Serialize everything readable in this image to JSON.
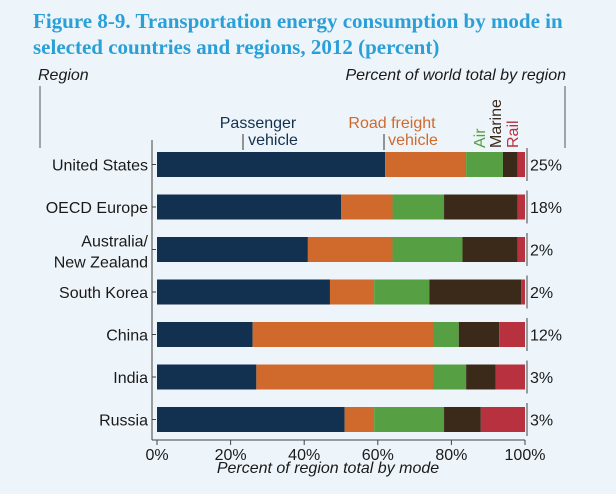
{
  "figure_title": "Figure 8-9. Transportation energy consumption by mode in selected countries and regions, 2012 (percent)",
  "colors": {
    "passenger": "#12304f",
    "road_freight": "#cf6a2c",
    "air": "#56a043",
    "marine": "#3b2a1a",
    "rail": "#b8313f",
    "title": "#2a9fd8",
    "background": "#eef5fa"
  },
  "chart_data": {
    "type": "bar",
    "orientation": "horizontal",
    "stacked": true,
    "categories": [
      "United States",
      "OECD Europe",
      "Australia/ New Zealand",
      "South Korea",
      "China",
      "India",
      "Russia"
    ],
    "series": [
      {
        "name": "Passenger vehicle",
        "values": [
          62,
          50,
          41,
          47,
          26,
          27,
          51
        ]
      },
      {
        "name": "Road freight vehicle",
        "values": [
          22,
          14,
          23,
          12,
          49,
          48,
          8
        ]
      },
      {
        "name": "Air",
        "values": [
          10,
          14,
          19,
          15,
          7,
          9,
          19
        ]
      },
      {
        "name": "Marine",
        "values": [
          4,
          20,
          15,
          25,
          11,
          8,
          10
        ]
      },
      {
        "name": "Rail",
        "values": [
          2,
          2,
          2,
          1,
          7,
          8,
          12
        ]
      }
    ],
    "right_values": [
      "25%",
      "18%",
      "2%",
      "2%",
      "12%",
      "3%",
      "3%"
    ],
    "xlim": [
      0,
      100
    ],
    "x_ticks": [
      "0%",
      "20%",
      "40%",
      "60%",
      "80%",
      "100%"
    ],
    "xlabel": "Percent of region total by mode",
    "left_header": "Region",
    "right_header": "Percent of world total by region",
    "series_labels": {
      "passenger": "Passenger vehicle",
      "road_freight": "Road freight vehicle",
      "air": "Air",
      "marine": "Marine",
      "rail": "Rail"
    },
    "legend_position": "top (labels above bars)",
    "grid": false
  }
}
